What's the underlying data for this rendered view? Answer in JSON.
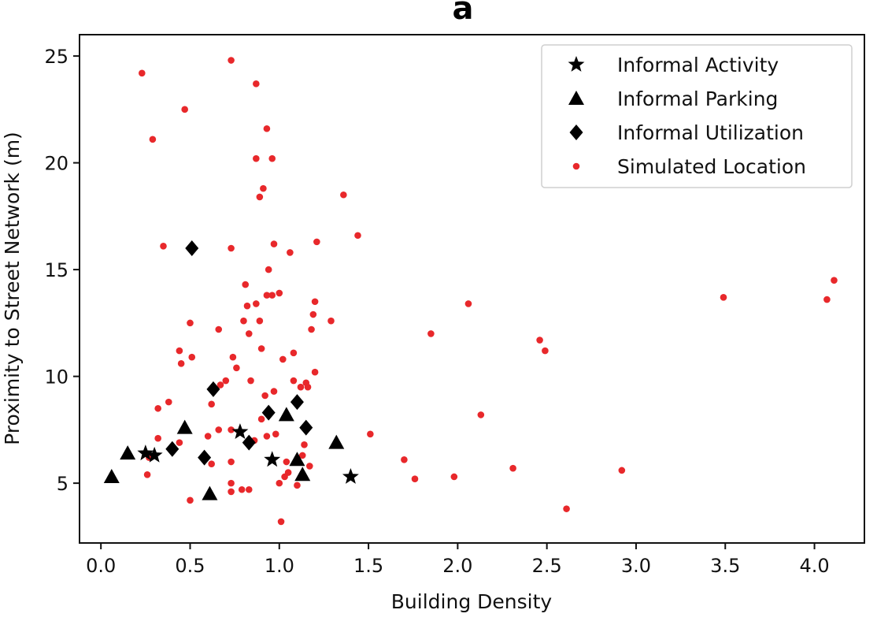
{
  "chart_data": {
    "type": "scatter",
    "title": "a",
    "xlabel": "Building Density",
    "ylabel": "Proximity to Street Network (m)",
    "xlim": [
      -0.12,
      4.28
    ],
    "ylim": [
      2.2,
      26.0
    ],
    "xticks": [
      0.0,
      0.5,
      1.0,
      1.5,
      2.0,
      2.5,
      3.0,
      3.5,
      4.0
    ],
    "xtick_labels": [
      "0.0",
      "0.5",
      "1.0",
      "1.5",
      "2.0",
      "2.5",
      "3.0",
      "3.5",
      "4.0"
    ],
    "yticks": [
      5,
      10,
      15,
      20,
      25
    ],
    "ytick_labels": [
      "5",
      "10",
      "15",
      "20",
      "25"
    ],
    "grid": false,
    "legend_position": "top-right",
    "series": [
      {
        "name": "Simulated Location",
        "marker": "circle",
        "color": "#e8282b",
        "points": [
          [
            0.23,
            24.2
          ],
          [
            0.73,
            24.8
          ],
          [
            0.87,
            23.7
          ],
          [
            0.47,
            22.5
          ],
          [
            0.29,
            21.1
          ],
          [
            0.93,
            21.6
          ],
          [
            0.87,
            20.2
          ],
          [
            0.96,
            20.2
          ],
          [
            0.91,
            18.8
          ],
          [
            0.89,
            18.4
          ],
          [
            1.36,
            18.5
          ],
          [
            1.44,
            16.6
          ],
          [
            0.35,
            16.1
          ],
          [
            0.73,
            16.0
          ],
          [
            0.97,
            16.2
          ],
          [
            1.06,
            15.8
          ],
          [
            1.21,
            16.3
          ],
          [
            0.94,
            15.0
          ],
          [
            0.81,
            14.3
          ],
          [
            0.93,
            13.8
          ],
          [
            0.96,
            13.8
          ],
          [
            1.0,
            13.9
          ],
          [
            0.87,
            13.4
          ],
          [
            0.82,
            13.3
          ],
          [
            1.2,
            13.5
          ],
          [
            1.19,
            12.9
          ],
          [
            1.29,
            12.6
          ],
          [
            0.8,
            12.6
          ],
          [
            0.89,
            12.6
          ],
          [
            0.5,
            12.5
          ],
          [
            0.66,
            12.2
          ],
          [
            1.18,
            12.2
          ],
          [
            0.83,
            12.0
          ],
          [
            1.85,
            12.0
          ],
          [
            2.06,
            13.4
          ],
          [
            0.44,
            11.2
          ],
          [
            0.9,
            11.3
          ],
          [
            1.08,
            11.1
          ],
          [
            2.46,
            11.7
          ],
          [
            2.49,
            11.2
          ],
          [
            0.45,
            10.6
          ],
          [
            0.51,
            10.9
          ],
          [
            0.74,
            10.9
          ],
          [
            1.02,
            10.8
          ],
          [
            0.76,
            10.4
          ],
          [
            1.2,
            10.2
          ],
          [
            0.7,
            9.8
          ],
          [
            0.84,
            9.8
          ],
          [
            1.08,
            9.8
          ],
          [
            1.12,
            9.5
          ],
          [
            1.15,
            9.7
          ],
          [
            0.67,
            9.6
          ],
          [
            0.92,
            9.1
          ],
          [
            0.97,
            9.3
          ],
          [
            1.16,
            9.5
          ],
          [
            0.38,
            8.8
          ],
          [
            0.32,
            8.5
          ],
          [
            0.62,
            8.7
          ],
          [
            0.9,
            8.0
          ],
          [
            2.13,
            8.2
          ],
          [
            0.66,
            7.5
          ],
          [
            0.73,
            7.5
          ],
          [
            0.93,
            7.2
          ],
          [
            0.98,
            7.3
          ],
          [
            1.51,
            7.3
          ],
          [
            0.32,
            7.1
          ],
          [
            0.6,
            7.2
          ],
          [
            0.86,
            7.0
          ],
          [
            1.14,
            6.8
          ],
          [
            0.44,
            6.9
          ],
          [
            0.27,
            6.2
          ],
          [
            0.73,
            6.0
          ],
          [
            1.04,
            6.0
          ],
          [
            1.13,
            6.3
          ],
          [
            1.7,
            6.1
          ],
          [
            0.62,
            5.9
          ],
          [
            1.17,
            5.8
          ],
          [
            2.31,
            5.7
          ],
          [
            2.92,
            5.6
          ],
          [
            0.26,
            5.4
          ],
          [
            1.03,
            5.3
          ],
          [
            1.76,
            5.2
          ],
          [
            1.98,
            5.3
          ],
          [
            1.05,
            5.5
          ],
          [
            0.73,
            5.0
          ],
          [
            1.0,
            5.0
          ],
          [
            1.1,
            4.9
          ],
          [
            0.73,
            4.6
          ],
          [
            0.79,
            4.7
          ],
          [
            0.83,
            4.7
          ],
          [
            0.5,
            4.2
          ],
          [
            0.61,
            4.4
          ],
          [
            2.61,
            3.8
          ],
          [
            1.01,
            3.2
          ],
          [
            3.49,
            13.7
          ],
          [
            4.07,
            13.6
          ],
          [
            4.11,
            14.5
          ]
        ]
      },
      {
        "name": "Informal Activity",
        "marker": "star",
        "color": "#000000",
        "points": [
          [
            0.25,
            6.4
          ],
          [
            0.3,
            6.3
          ],
          [
            0.78,
            7.4
          ],
          [
            0.96,
            6.1
          ],
          [
            1.4,
            5.3
          ]
        ]
      },
      {
        "name": "Informal Parking",
        "marker": "triangle",
        "color": "#000000",
        "points": [
          [
            0.06,
            5.3
          ],
          [
            0.15,
            6.4
          ],
          [
            0.47,
            7.6
          ],
          [
            0.61,
            4.5
          ],
          [
            1.04,
            8.2
          ],
          [
            1.1,
            6.1
          ],
          [
            1.13,
            5.4
          ],
          [
            1.32,
            6.9
          ]
        ]
      },
      {
        "name": "Informal Utilization",
        "marker": "diamond",
        "color": "#000000",
        "points": [
          [
            0.51,
            16.0
          ],
          [
            0.4,
            6.6
          ],
          [
            0.58,
            6.2
          ],
          [
            0.63,
            9.4
          ],
          [
            0.83,
            6.9
          ],
          [
            0.94,
            8.3
          ],
          [
            1.1,
            8.8
          ],
          [
            1.15,
            7.6
          ]
        ]
      }
    ],
    "legend": [
      {
        "label": "Informal Activity",
        "marker": "star"
      },
      {
        "label": "Informal Parking",
        "marker": "triangle"
      },
      {
        "label": "Informal Utilization",
        "marker": "diamond"
      },
      {
        "label": "Simulated Location",
        "marker": "circle"
      }
    ]
  }
}
